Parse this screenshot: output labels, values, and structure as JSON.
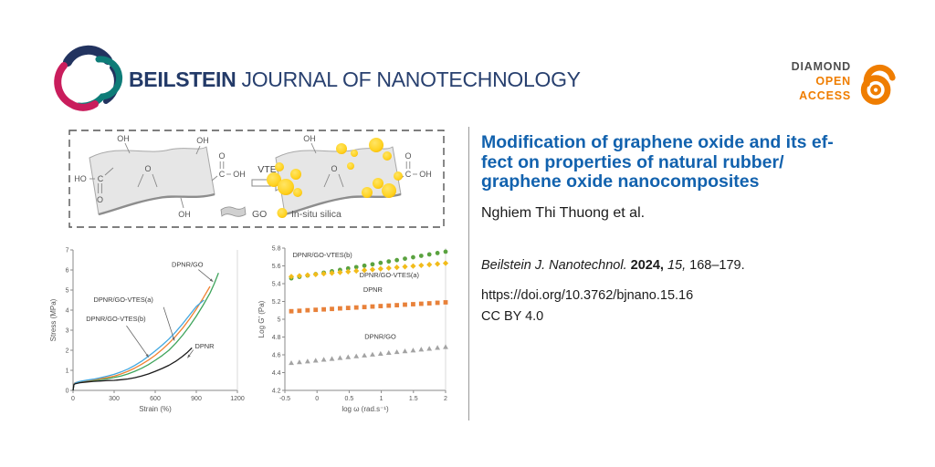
{
  "header": {
    "journal_bold": "BEILSTEIN",
    "journal_rest": " JOURNAL OF NANOTECHNOLOGY",
    "badge": {
      "line1": "DIAMOND",
      "line2": "OPEN",
      "line3": "ACCESS"
    }
  },
  "article": {
    "title_lines": [
      "Modification of graphene oxide and its ef-",
      "fect on properties of natural rubber/",
      "graphene oxide nanocomposites"
    ],
    "authors": "Nghiem Thi Thuong et al.",
    "citation": {
      "journal": "Beilstein J. Nanotechnol.",
      "year": "2024,",
      "volume": "15,",
      "pages": "168–179."
    },
    "doi": "https://doi.org/10.3762/bjnano.15.16",
    "license": "CC BY 4.0"
  },
  "scheme": {
    "reagent_label": "VTES",
    "oh": "OH",
    "ho": "HO",
    "carbon": "C",
    "oxygen": "O",
    "legend_go": "GO",
    "legend_silica": "In-situ silica",
    "colors": {
      "sheet": "#e6e6e6",
      "silica": "#ffd21f",
      "silica_edge": "#f3b200"
    }
  },
  "chart_data": [
    {
      "type": "line",
      "xlabel": "Strain (%)",
      "ylabel": "Stress (MPa)",
      "xlim": [
        0,
        1200
      ],
      "ylim": [
        0,
        7
      ],
      "xticks": [
        0,
        300,
        600,
        900,
        1200
      ],
      "yticks": [
        0,
        1,
        2,
        3,
        4,
        5,
        6,
        7
      ],
      "grid": false,
      "series": [
        {
          "name": "DPNR/GO",
          "color": "#3fa45c",
          "mode": "line",
          "points": [
            [
              0,
              0
            ],
            [
              6,
              0.3
            ],
            [
              15,
              0.35
            ],
            [
              50,
              0.41
            ],
            [
              100,
              0.45
            ],
            [
              150,
              0.49
            ],
            [
              200,
              0.54
            ],
            [
              250,
              0.58
            ],
            [
              300,
              0.64
            ],
            [
              350,
              0.72
            ],
            [
              400,
              0.82
            ],
            [
              450,
              0.95
            ],
            [
              500,
              1.1
            ],
            [
              550,
              1.28
            ],
            [
              600,
              1.5
            ],
            [
              650,
              1.73
            ],
            [
              700,
              2.0
            ],
            [
              750,
              2.35
            ],
            [
              800,
              2.75
            ],
            [
              850,
              3.2
            ],
            [
              900,
              3.7
            ],
            [
              950,
              4.25
            ],
            [
              1000,
              4.85
            ],
            [
              1030,
              5.3
            ],
            [
              1062,
              5.85
            ]
          ]
        },
        {
          "name": "DPNR/GO-VTES(a)",
          "color": "#f08232",
          "mode": "line",
          "points": [
            [
              0,
              0
            ],
            [
              6,
              0.32
            ],
            [
              15,
              0.38
            ],
            [
              50,
              0.44
            ],
            [
              100,
              0.48
            ],
            [
              150,
              0.53
            ],
            [
              200,
              0.58
            ],
            [
              250,
              0.64
            ],
            [
              300,
              0.71
            ],
            [
              350,
              0.82
            ],
            [
              400,
              0.95
            ],
            [
              450,
              1.11
            ],
            [
              500,
              1.3
            ],
            [
              550,
              1.51
            ],
            [
              600,
              1.75
            ],
            [
              650,
              2.03
            ],
            [
              700,
              2.35
            ],
            [
              750,
              2.7
            ],
            [
              800,
              3.1
            ],
            [
              850,
              3.55
            ],
            [
              900,
              4.05
            ],
            [
              950,
              4.6
            ],
            [
              1000,
              5.18
            ]
          ]
        },
        {
          "name": "DPNR/GO-VTES(b)",
          "color": "#41a7e0",
          "mode": "line",
          "points": [
            [
              0,
              0
            ],
            [
              6,
              0.3
            ],
            [
              15,
              0.37
            ],
            [
              50,
              0.45
            ],
            [
              100,
              0.51
            ],
            [
              150,
              0.56
            ],
            [
              200,
              0.63
            ],
            [
              250,
              0.71
            ],
            [
              300,
              0.8
            ],
            [
              350,
              0.92
            ],
            [
              400,
              1.06
            ],
            [
              450,
              1.24
            ],
            [
              500,
              1.45
            ],
            [
              550,
              1.7
            ],
            [
              600,
              1.97
            ],
            [
              650,
              2.25
            ],
            [
              700,
              2.56
            ],
            [
              750,
              2.92
            ],
            [
              800,
              3.32
            ],
            [
              850,
              3.75
            ],
            [
              900,
              4.18
            ],
            [
              955,
              4.5
            ]
          ]
        },
        {
          "name": "DPNR",
          "color": "#1a1a1a",
          "mode": "line",
          "points": [
            [
              0,
              0
            ],
            [
              6,
              0.28
            ],
            [
              15,
              0.33
            ],
            [
              50,
              0.38
            ],
            [
              100,
              0.42
            ],
            [
              150,
              0.45
            ],
            [
              200,
              0.47
            ],
            [
              250,
              0.49
            ],
            [
              300,
              0.5
            ],
            [
              350,
              0.53
            ],
            [
              400,
              0.57
            ],
            [
              450,
              0.63
            ],
            [
              500,
              0.72
            ],
            [
              550,
              0.82
            ],
            [
              600,
              0.95
            ],
            [
              650,
              1.09
            ],
            [
              700,
              1.25
            ],
            [
              750,
              1.45
            ],
            [
              800,
              1.7
            ],
            [
              835,
              1.9
            ],
            [
              868,
              2.12
            ]
          ]
        }
      ],
      "annotations": [
        {
          "text": "DPNR/GO",
          "x": 720,
          "y": 6.15,
          "arrow": [
            915,
            6.02,
            1022,
            5.42
          ]
        },
        {
          "text": "DPNR/GO-VTES(a)",
          "x": 150,
          "y": 4.42,
          "arrow": [
            661,
            4.15,
            740,
            2.48
          ]
        },
        {
          "text": "DPNR/GO-VTES(b)",
          "x": 95,
          "y": 3.45,
          "arrow": [
            390,
            3.22,
            552,
            1.65
          ]
        },
        {
          "text": "DPNR",
          "x": 890,
          "y": 2.1,
          "arrow": [
            878,
            2.02,
            836,
            1.62
          ]
        }
      ]
    },
    {
      "type": "scatter",
      "xlabel": "log ω (rad.s⁻¹)",
      "ylabel": "Log G' (Pa)",
      "xlim": [
        -0.5,
        2
      ],
      "ylim": [
        4.2,
        5.8
      ],
      "xticks": [
        -0.5,
        0,
        0.5,
        1,
        1.5,
        2
      ],
      "yticks": [
        4.2,
        4.4,
        4.6,
        4.8,
        5,
        5.2,
        5.4,
        5.6,
        5.8
      ],
      "grid": false,
      "x": [
        -0.4,
        -0.274,
        -0.147,
        -0.021,
        0.105,
        0.232,
        0.358,
        0.484,
        0.611,
        0.737,
        0.863,
        0.989,
        1.116,
        1.242,
        1.368,
        1.495,
        1.621,
        1.747,
        1.874,
        2.0
      ],
      "series": [
        {
          "name": "DPNR/GO",
          "marker": "triangle",
          "color": "#a3a3a3",
          "y": [
            4.51,
            4.519,
            4.529,
            4.538,
            4.548,
            4.557,
            4.567,
            4.576,
            4.586,
            4.595,
            4.605,
            4.614,
            4.624,
            4.633,
            4.643,
            4.652,
            4.662,
            4.671,
            4.681,
            4.69
          ]
        },
        {
          "name": "DPNR",
          "marker": "square",
          "color": "#e8813a",
          "y": [
            5.09,
            5.095,
            5.101,
            5.106,
            5.111,
            5.116,
            5.122,
            5.127,
            5.132,
            5.137,
            5.143,
            5.148,
            5.153,
            5.158,
            5.164,
            5.169,
            5.174,
            5.179,
            5.185,
            5.19
          ]
        },
        {
          "name": "DPNR/GO-VTES(b)",
          "marker": "circle",
          "color": "#5aa23f",
          "y": [
            5.46,
            5.476,
            5.492,
            5.507,
            5.523,
            5.539,
            5.555,
            5.571,
            5.586,
            5.602,
            5.618,
            5.634,
            5.65,
            5.665,
            5.681,
            5.697,
            5.713,
            5.729,
            5.744,
            5.76
          ]
        },
        {
          "name": "DPNR/GO-VTES(a)",
          "marker": "diamond",
          "color": "#f2bc1b",
          "y": [
            5.48,
            5.488,
            5.496,
            5.504,
            5.512,
            5.519,
            5.527,
            5.535,
            5.543,
            5.551,
            5.559,
            5.567,
            5.575,
            5.583,
            5.591,
            5.598,
            5.606,
            5.614,
            5.622,
            5.63
          ]
        }
      ],
      "annotations": [
        {
          "text": "DPNR/GO-VTES(b)",
          "x": -0.38,
          "y": 5.7
        },
        {
          "text": "DPNR/GO-VTES(a)",
          "x": 0.66,
          "y": 5.47
        },
        {
          "text": "DPNR",
          "x": 0.72,
          "y": 5.31
        },
        {
          "text": "DPNR/GO",
          "x": 0.74,
          "y": 4.78
        }
      ]
    }
  ]
}
